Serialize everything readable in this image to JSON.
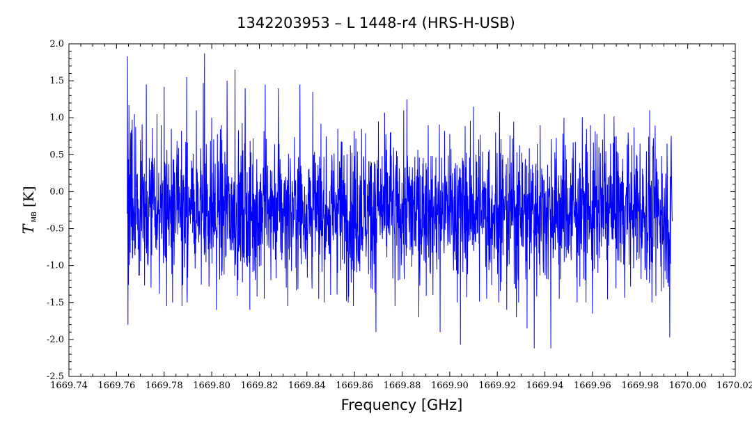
{
  "chart_data": {
    "type": "line",
    "title": "1342203953 – L 1448-r4 (HRS-H-USB)",
    "xlabel": "Frequency [GHz]",
    "ylabel": {
      "symbol": "T",
      "subscript": "MB",
      "unit": "[K]"
    },
    "xlim": [
      1669.74,
      1670.02
    ],
    "ylim": [
      -2.5,
      2.0
    ],
    "x_ticks": [
      "1669.74",
      "1669.76",
      "1669.78",
      "1669.80",
      "1669.82",
      "1669.84",
      "1669.86",
      "1669.88",
      "1669.90",
      "1669.92",
      "1669.94",
      "1669.96",
      "1669.98",
      "1670.00",
      "1670.02"
    ],
    "y_ticks": [
      "2.0",
      "1.5",
      "1.0",
      "0.5",
      "0.0",
      "-0.5",
      "-1.0",
      "-1.5",
      "-2.0",
      "-2.5"
    ],
    "grid": false,
    "legend": "none",
    "series_color": "#0000ff",
    "series": [
      {
        "x_start": 1669.7645,
        "x_end": 1669.9935,
        "description_points": [
          [
            1669.7645,
            -0.3
          ],
          [
            1669.7646,
            1.83
          ],
          [
            1669.7648,
            -1.8
          ],
          [
            1669.7652,
            1.17
          ],
          [
            1669.766,
            0.8
          ],
          [
            1669.7675,
            1.05
          ],
          [
            1669.77,
            0.7
          ],
          [
            1669.7725,
            1.45
          ],
          [
            1669.7745,
            -1.3
          ],
          [
            1669.777,
            1.05
          ],
          [
            1669.78,
            1.42
          ],
          [
            1669.781,
            -1.55
          ],
          [
            1669.783,
            0.85
          ],
          [
            1669.7875,
            -1.55
          ],
          [
            1669.7895,
            1.55
          ],
          [
            1669.7935,
            1.1
          ],
          [
            1669.7965,
            1.47
          ],
          [
            1669.797,
            1.87
          ],
          [
            1669.8,
            1.0
          ],
          [
            1669.802,
            -1.6
          ],
          [
            1669.8065,
            1.5
          ],
          [
            1669.8098,
            1.65
          ],
          [
            1669.814,
            1.4
          ],
          [
            1669.816,
            -1.6
          ],
          [
            1669.8225,
            1.45
          ],
          [
            1669.828,
            1.4
          ],
          [
            1669.832,
            -1.55
          ],
          [
            1669.837,
            1.45
          ],
          [
            1669.8425,
            1.35
          ],
          [
            1669.845,
            -1.45
          ],
          [
            1669.85,
            -1.4
          ],
          [
            1669.853,
            0.85
          ],
          [
            1669.8595,
            -1.55
          ],
          [
            1669.863,
            0.85
          ],
          [
            1669.869,
            -1.9
          ],
          [
            1669.87,
            0.95
          ],
          [
            1669.875,
            0.8
          ],
          [
            1669.877,
            -1.55
          ],
          [
            1669.882,
            1.25
          ],
          [
            1669.887,
            -1.7
          ],
          [
            1669.891,
            0.9
          ],
          [
            1669.893,
            -1.4
          ],
          [
            1669.896,
            -1.9
          ],
          [
            1669.9,
            0.78
          ],
          [
            1669.9045,
            -2.07
          ],
          [
            1669.91,
            1.15
          ],
          [
            1669.9155,
            -1.45
          ],
          [
            1669.921,
            1.08
          ],
          [
            1669.924,
            -1.6
          ],
          [
            1669.928,
            -1.7
          ],
          [
            1669.9325,
            -1.85
          ],
          [
            1669.9355,
            -2.12
          ],
          [
            1669.938,
            0.9
          ],
          [
            1669.9425,
            -2.12
          ],
          [
            1669.946,
            -1.45
          ],
          [
            1669.948,
            1.0
          ],
          [
            1669.9535,
            -1.5
          ],
          [
            1669.9575,
            0.85
          ],
          [
            1669.96,
            -1.65
          ],
          [
            1669.965,
            1.05
          ],
          [
            1669.97,
            0.75
          ],
          [
            1669.975,
            0.8
          ],
          [
            1669.98,
            0.65
          ],
          [
            1669.985,
            -1.5
          ],
          [
            1669.99,
            -1.3
          ],
          [
            1669.9925,
            -1.97
          ],
          [
            1669.993,
            0.63
          ],
          [
            1669.9935,
            -0.4
          ]
        ],
        "baseline_mean": -0.25,
        "noise_sigma": 0.5
      }
    ]
  }
}
